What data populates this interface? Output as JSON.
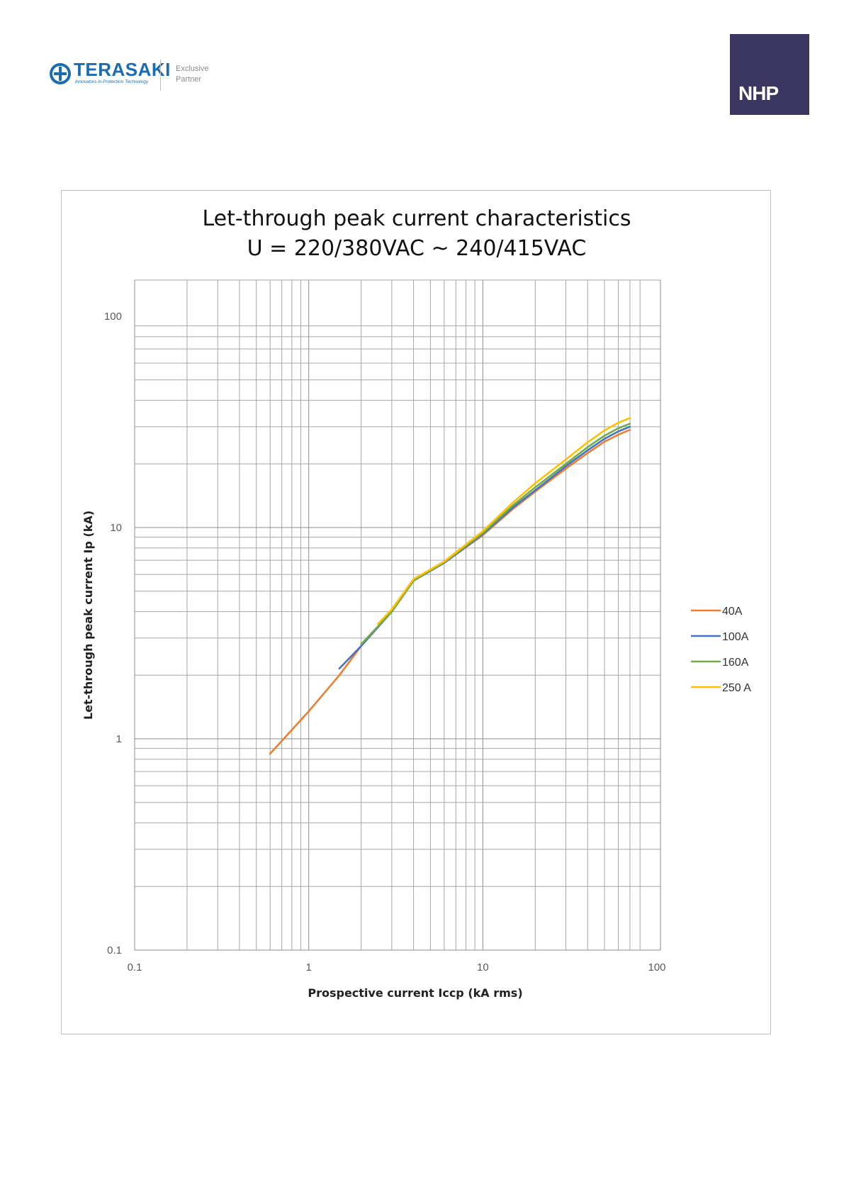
{
  "header": {
    "brand_name": "TERASAKI",
    "brand_tagline": "Innovators in Protection Technology",
    "partner_line1": "Exclusive",
    "partner_line2": "Partner",
    "partner_logo_text": "NHP",
    "colors": {
      "terasaki_blue": "#1a6db2",
      "nhp_purple": "#3b3562"
    }
  },
  "chart_data": {
    "type": "line",
    "title": "Let-through peak current characteristics",
    "subtitle": "U = 220/380VAC ~ 240/415VAC",
    "xlabel": "Prospective current Iccp (kA rms)",
    "ylabel": "Let-through peak current Ip (kA)",
    "x_scale": "log",
    "y_scale": "log",
    "xlim": [
      0.1,
      100
    ],
    "ylim": [
      0.1,
      100
    ],
    "x_ticks": [
      "0.1",
      "1",
      "10",
      "100"
    ],
    "y_ticks": [
      "0.1",
      "1",
      "10",
      "100"
    ],
    "grid": true,
    "legend_position": "right",
    "series": [
      {
        "name": "40A",
        "color": "#ed7d31",
        "x": [
          0.6,
          1.0,
          1.5,
          2.0,
          3.0,
          4.0,
          6.0,
          10.0,
          15.0,
          20.0,
          30.0,
          40.0,
          50.0,
          60.0,
          70.0
        ],
        "y": [
          0.85,
          1.35,
          2.0,
          2.75,
          4.0,
          5.6,
          6.8,
          9.2,
          12.3,
          14.8,
          19.0,
          22.5,
          25.5,
          27.5,
          29.0
        ]
      },
      {
        "name": "100A",
        "color": "#4472c4",
        "x": [
          1.5,
          2.0,
          3.0,
          4.0,
          6.0,
          10.0,
          15.0,
          20.0,
          30.0,
          40.0,
          50.0,
          60.0,
          70.0
        ],
        "y": [
          2.15,
          2.75,
          4.0,
          5.6,
          6.8,
          9.3,
          12.5,
          15.0,
          19.5,
          23.2,
          26.3,
          28.5,
          30.0
        ]
      },
      {
        "name": "160A",
        "color": "#70ad47",
        "x": [
          2.0,
          3.0,
          4.0,
          6.0,
          10.0,
          15.0,
          20.0,
          30.0,
          40.0,
          50.0,
          60.0,
          70.0
        ],
        "y": [
          2.8,
          4.0,
          5.6,
          6.85,
          9.4,
          12.8,
          15.5,
          20.0,
          24.0,
          27.2,
          29.5,
          31.0
        ]
      },
      {
        "name": "250 A",
        "color": "#ffc000",
        "x": [
          2.5,
          3.0,
          4.0,
          6.0,
          10.0,
          15.0,
          20.0,
          30.0,
          40.0,
          50.0,
          60.0,
          70.0
        ],
        "y": [
          3.5,
          4.1,
          5.7,
          6.9,
          9.6,
          13.2,
          16.2,
          21.0,
          25.3,
          28.8,
          31.3,
          33.0
        ]
      }
    ]
  }
}
